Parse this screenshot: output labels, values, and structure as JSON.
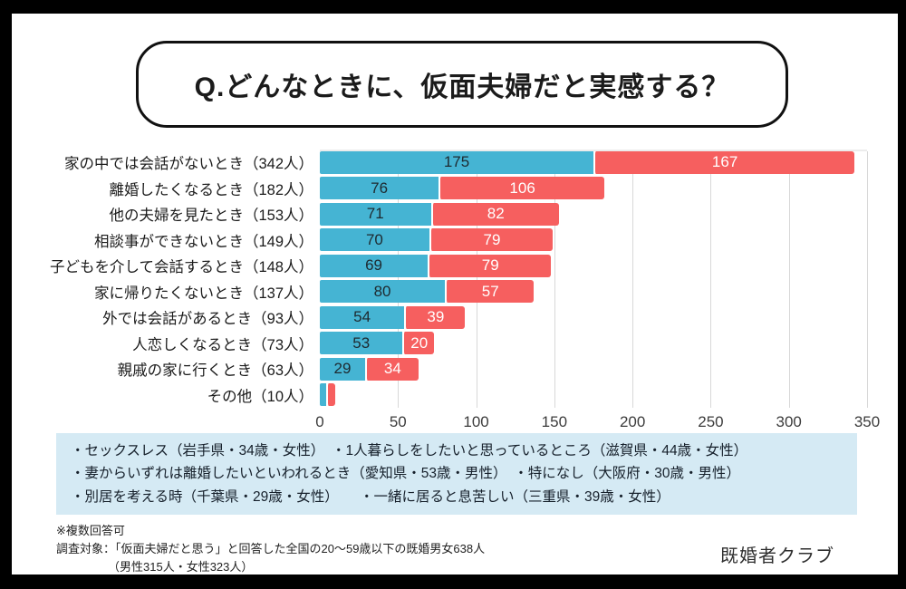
{
  "title": "Q.どんなときに、仮面夫婦だと実感する？",
  "chart_data": {
    "type": "bar",
    "orientation": "horizontal",
    "stacked": true,
    "title": "Q.どんなときに、仮面夫婦だと実感する？",
    "categories": [
      "家の中では会話がないとき（342人）",
      "離婚したくなるとき（182人）",
      "他の夫婦を見たとき（153人）",
      "相談事ができないとき（149人）",
      "子どもを介して会話するとき（148人）",
      "家に帰りたくないとき（137人）",
      "外では会話があるとき（93人）",
      "人恋しくなるとき（73人）",
      "親戚の家に行くとき（63人）",
      "その他（10人）"
    ],
    "series": [
      {
        "key": "blue",
        "color": "#45b4d3",
        "values": [
          175,
          76,
          71,
          70,
          69,
          80,
          54,
          53,
          29,
          4
        ],
        "labels": [
          "175",
          "76",
          "71",
          "70",
          "69",
          "80",
          "54",
          "53",
          "29",
          ""
        ]
      },
      {
        "key": "red",
        "color": "#f65f5f",
        "values": [
          167,
          106,
          82,
          79,
          79,
          57,
          39,
          20,
          34,
          6
        ],
        "labels": [
          "167",
          "106",
          "82",
          "79",
          "79",
          "57",
          "39",
          "20",
          "34",
          ""
        ]
      }
    ],
    "xlim": [
      0,
      350
    ],
    "xticks": [
      0,
      50,
      100,
      150,
      200,
      250,
      300,
      350
    ],
    "grid": true,
    "legend": false
  },
  "quotes": [
    "・セックスレス（岩手県・34歳・女性）　・1人暮らしをしたいと思っているところ（滋賀県・44歳・女性）",
    "・妻からいずれは離婚したいといわれるとき（愛知県・53歳・男性）　・特になし（大阪府・30歳・男性）",
    "・別居を考える時（千葉県・29歳・女性）　　・一緒に居ると息苦しい（三重県・39歳・女性）"
  ],
  "notes": [
    "※複数回答可",
    "調査対象：「仮面夫婦だと思う」と回答した全国の20〜59歳以下の既婚男女638人",
    "（男性315人・女性323人）"
  ],
  "brand": "既婚者クラブ",
  "colors": {
    "bar_blue": "#45b4d3",
    "bar_red": "#f65f5f",
    "quote_bg": "#d5eaf4",
    "frame": "#000000"
  }
}
